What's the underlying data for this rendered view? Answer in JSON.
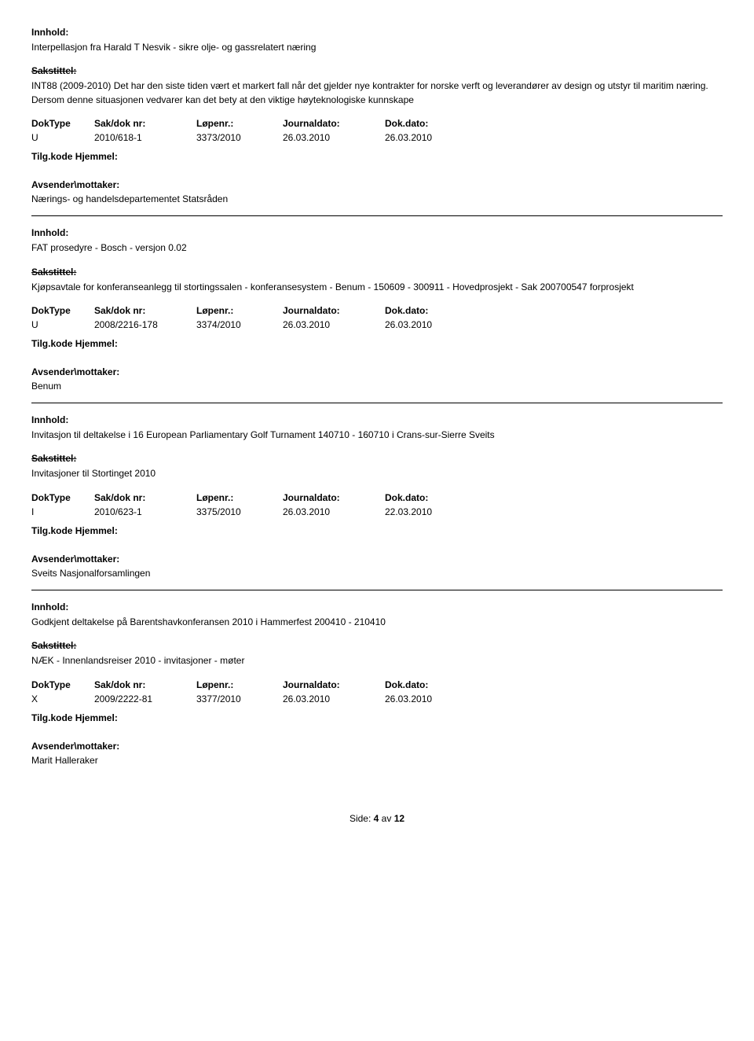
{
  "labels": {
    "innhold": "Innhold:",
    "sakstittel": "Sakstittel:",
    "doktype": "DokType",
    "saknr": "Sak/dok nr:",
    "lopenr": "Løpenr.:",
    "journaldato": "Journaldato:",
    "dokdato": "Dok.dato:",
    "tilgkode": "Tilg.kode",
    "hjemmel": "Hjemmel:",
    "avsender": "Avsender\\mottaker:"
  },
  "records": [
    {
      "innhold": "Interpellasjon fra Harald T Nesvik - sikre olje- og gassrelatert næring",
      "sakstittel": "INT88 (2009-2010) Det har den siste tiden vært et markert fall når det gjelder nye kontrakter for norske verft og leverandører av design og utstyr til maritim næring. Dersom denne situasjonen vedvarer kan det bety at den viktige høyteknologiske kunnskape",
      "doktype": "U",
      "saknr": "2010/618-1",
      "lopenr": "3373/2010",
      "jdato": "26.03.2010",
      "ddato": "26.03.2010",
      "avsender": "Nærings- og handelsdepartementet Statsråden"
    },
    {
      "innhold": "FAT prosedyre - Bosch - versjon 0.02",
      "sakstittel": "Kjøpsavtale for konferanseanlegg til stortingssalen -  konferansesystem -  Benum - 150609 - 300911 - Hovedprosjekt - Sak 200700547 forprosjekt",
      "doktype": "U",
      "saknr": "2008/2216-178",
      "lopenr": "3374/2010",
      "jdato": "26.03.2010",
      "ddato": "26.03.2010",
      "avsender": "Benum"
    },
    {
      "innhold": "Invitasjon til deltakelse i 16 European Parliamentary Golf Turnament 140710 - 160710 i Crans-sur-Sierre Sveits",
      "sakstittel": "Invitasjoner til Stortinget 2010",
      "doktype": "I",
      "saknr": "2010/623-1",
      "lopenr": "3375/2010",
      "jdato": "26.03.2010",
      "ddato": "22.03.2010",
      "avsender": "Sveits Nasjonalforsamlingen"
    },
    {
      "innhold": "Godkjent deltakelse på Barentshavkonferansen 2010 i Hammerfest 200410 - 210410",
      "sakstittel": "NÆK - Innenlandsreiser 2010 - invitasjoner - møter",
      "doktype": "X",
      "saknr": "2009/2222-81",
      "lopenr": "3377/2010",
      "jdato": "26.03.2010",
      "ddato": "26.03.2010",
      "avsender": "Marit Halleraker"
    }
  ],
  "footer": {
    "label": "Side:",
    "page": "4",
    "of_label": "av",
    "total": "12"
  }
}
